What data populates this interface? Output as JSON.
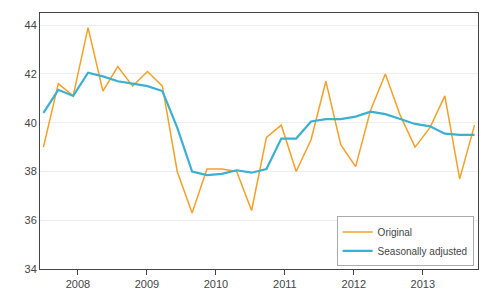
{
  "chart_data": {
    "type": "line",
    "x": [
      2007.5,
      2007.7155172414,
      2007.9310344828,
      2008.1465517241,
      2008.3620689655,
      2008.5775862069,
      2008.7931034483,
      2009.0086206897,
      2009.224137931,
      2009.4396551724,
      2009.6551724138,
      2009.8706896552,
      2010.0862068966,
      2010.3017241379,
      2010.5172413793,
      2010.7327586207,
      2010.9482758621,
      2011.1637931034,
      2011.3793103448,
      2011.5948275862,
      2011.8103448276,
      2012.025862069,
      2012.2413793103,
      2012.4568965517,
      2012.6724137931,
      2012.8879310345,
      2013.1034482759,
      2013.3189655172,
      2013.5344827586,
      2013.75
    ],
    "series": [
      {
        "name": "Original",
        "color": "#F5A028",
        "values": [
          39.0,
          41.6,
          41.1,
          43.9,
          41.3,
          42.3,
          41.5,
          42.1,
          41.5,
          38.0,
          36.3,
          38.1,
          38.1,
          38.0,
          36.4,
          39.4,
          39.9,
          38.0,
          39.3,
          41.7,
          39.1,
          38.2,
          40.5,
          42.0,
          40.3,
          39.0,
          39.8,
          41.1,
          37.7,
          39.9
        ]
      },
      {
        "name": "Seasonally adjusted",
        "color": "#3BB0D0",
        "values": [
          40.4,
          41.35,
          41.1,
          42.05,
          41.9,
          41.7,
          41.6,
          41.5,
          41.3,
          39.8,
          38.0,
          37.85,
          37.9,
          38.05,
          37.95,
          38.1,
          39.35,
          39.35,
          40.05,
          40.15,
          40.15,
          40.25,
          40.45,
          40.35,
          40.15,
          39.95,
          39.85,
          39.55,
          39.5,
          39.5
        ]
      }
    ],
    "xlim": [
      2007.45,
      2013.8
    ],
    "ylim": [
      34,
      44.5
    ],
    "xticks": [
      2008,
      2009,
      2010,
      2011,
      2012,
      2013
    ],
    "yticks": [
      34,
      36,
      38,
      40,
      42,
      44
    ],
    "grid": true,
    "legend": "lower right"
  }
}
